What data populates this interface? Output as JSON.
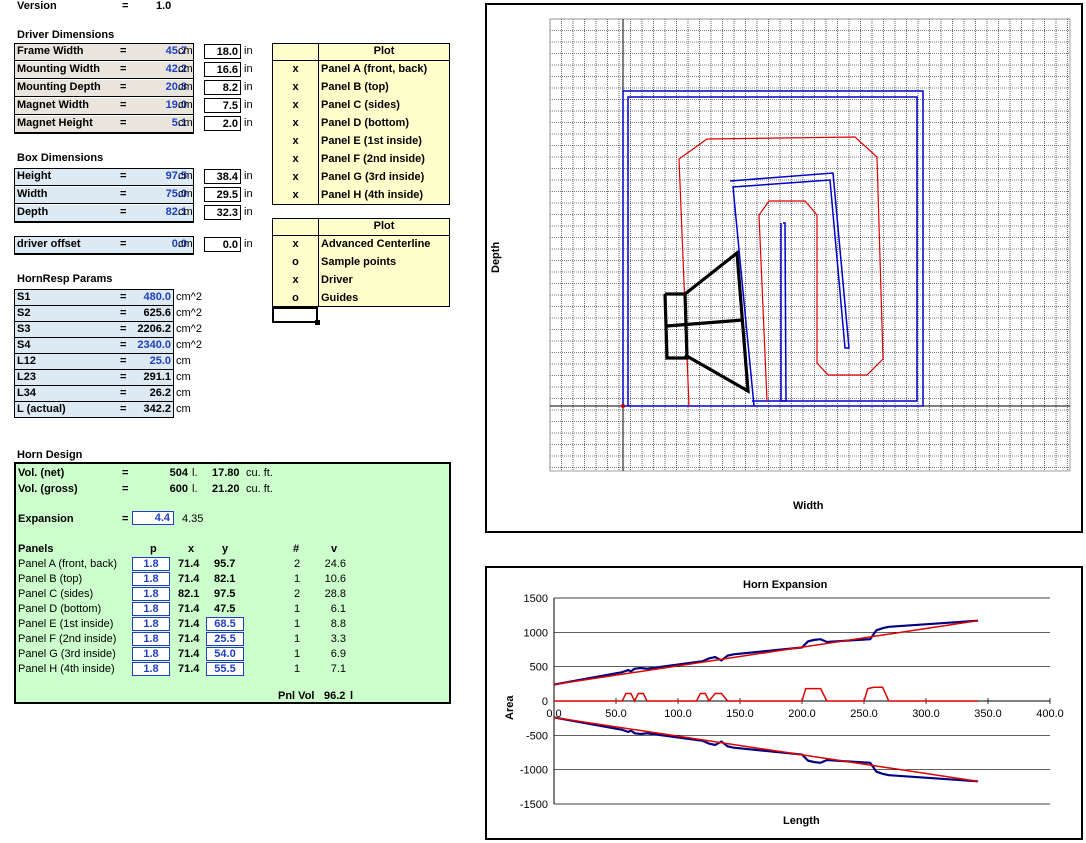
{
  "version": {
    "label": "Version",
    "eq": "=",
    "value": "1.0"
  },
  "driver": {
    "title": "Driver Dimensions",
    "rows": [
      {
        "label": "Frame Width",
        "eq": "=",
        "cm": "45.7",
        "unit": "cm",
        "in": "18.0",
        "iu": "in"
      },
      {
        "label": "Mounting Width",
        "eq": "=",
        "cm": "42.2",
        "unit": "cm",
        "in": "16.6",
        "iu": "in"
      },
      {
        "label": "Mounting Depth",
        "eq": "=",
        "cm": "20.8",
        "unit": "cm",
        "in": "8.2",
        "iu": "in"
      },
      {
        "label": "Magnet Width",
        "eq": "=",
        "cm": "19.0",
        "unit": "cm",
        "in": "7.5",
        "iu": "in"
      },
      {
        "label": "Magnet Height",
        "eq": "=",
        "cm": "5.1",
        "unit": "cm",
        "in": "2.0",
        "iu": "in"
      }
    ]
  },
  "box": {
    "title": "Box Dimensions",
    "rows": [
      {
        "label": "Height",
        "eq": "=",
        "cm": "97.5",
        "unit": "cm",
        "in": "38.4",
        "iu": "in"
      },
      {
        "label": "Width",
        "eq": "=",
        "cm": "75.0",
        "unit": "cm",
        "in": "29.5",
        "iu": "in"
      },
      {
        "label": "Depth",
        "eq": "=",
        "cm": "82.1",
        "unit": "cm",
        "in": "32.3",
        "iu": "in"
      }
    ]
  },
  "offset": {
    "label": "driver offset",
    "eq": "=",
    "cm": "0.0",
    "unit": "cm",
    "in": "0.0",
    "iu": "in"
  },
  "hornresp": {
    "title": "HornResp Params",
    "rows": [
      {
        "label": "S1",
        "eq": "=",
        "val": "480.0",
        "unit": "cm^2",
        "blue": true
      },
      {
        "label": "S2",
        "eq": "=",
        "val": "625.6",
        "unit": "cm^2",
        "blue": false
      },
      {
        "label": "S3",
        "eq": "=",
        "val": "2206.2",
        "unit": "cm^2",
        "blue": false
      },
      {
        "label": "S4",
        "eq": "=",
        "val": "2340.0",
        "unit": "cm^2",
        "blue": true
      },
      {
        "label": "L12",
        "eq": "=",
        "val": "25.0",
        "unit": "cm",
        "blue": true
      },
      {
        "label": "L23",
        "eq": "=",
        "val": "291.1",
        "unit": "cm",
        "blue": false
      },
      {
        "label": "L34",
        "eq": "=",
        "val": "26.2",
        "unit": "cm",
        "blue": false
      },
      {
        "label": "L (actual)",
        "eq": "=",
        "val": "342.2",
        "unit": "cm",
        "blue": false
      }
    ]
  },
  "plot1": {
    "header": "Plot",
    "rows": [
      {
        "mark": "x",
        "label": "Panel A (front, back)"
      },
      {
        "mark": "x",
        "label": "Panel B (top)"
      },
      {
        "mark": "x",
        "label": "Panel C (sides)"
      },
      {
        "mark": "x",
        "label": "Panel D (bottom)"
      },
      {
        "mark": "x",
        "label": "Panel E (1st inside)"
      },
      {
        "mark": "x",
        "label": "Panel F (2nd inside)"
      },
      {
        "mark": "x",
        "label": "Panel G (3rd inside)"
      },
      {
        "mark": "x",
        "label": "Panel H (4th inside)"
      }
    ]
  },
  "plot2": {
    "header": "Plot",
    "rows": [
      {
        "mark": "x",
        "label": "Advanced Centerline"
      },
      {
        "mark": "o",
        "label": "Sample points"
      },
      {
        "mark": "x",
        "label": "Driver"
      },
      {
        "mark": "o",
        "label": "Guides"
      }
    ]
  },
  "horn": {
    "title": "Horn Design",
    "volnet": {
      "label": "Vol. (net)",
      "eq": "=",
      "val": "504",
      "u1": "l.",
      "cuft": "17.80",
      "u2": "cu. ft."
    },
    "volgross": {
      "label": "Vol. (gross)",
      "eq": "=",
      "val": "600",
      "u1": "l.",
      "cuft": "21.20",
      "u2": "cu. ft."
    },
    "expansion": {
      "label": "Expansion",
      "eq": "=",
      "val": "4.4",
      "alt": "4.35"
    },
    "headers": {
      "panels": "Panels",
      "p": "p",
      "x": "x",
      "y": "y",
      "n": "#",
      "v": "v"
    },
    "panels": [
      {
        "name": "Panel A (front, back)",
        "p": "1.8",
        "x": "71.4",
        "y": "95.7",
        "ybox": false,
        "n": "2",
        "v": "24.6"
      },
      {
        "name": "Panel B (top)",
        "p": "1.8",
        "x": "71.4",
        "y": "82.1",
        "ybox": false,
        "n": "1",
        "v": "10.6"
      },
      {
        "name": "Panel C (sides)",
        "p": "1.8",
        "x": "82.1",
        "y": "97.5",
        "ybox": false,
        "n": "2",
        "v": "28.8"
      },
      {
        "name": "Panel D (bottom)",
        "p": "1.8",
        "x": "71.4",
        "y": "47.5",
        "ybox": false,
        "n": "1",
        "v": "6.1"
      },
      {
        "name": "Panel E (1st inside)",
        "p": "1.8",
        "x": "71.4",
        "y": "68.5",
        "ybox": true,
        "n": "1",
        "v": "8.8"
      },
      {
        "name": "Panel F (2nd inside)",
        "p": "1.8",
        "x": "71.4",
        "y": "25.5",
        "ybox": true,
        "n": "1",
        "v": "3.3"
      },
      {
        "name": "Panel G (3rd inside)",
        "p": "1.8",
        "x": "71.4",
        "y": "54.0",
        "ybox": true,
        "n": "1",
        "v": "6.9"
      },
      {
        "name": "Panel H (4th inside)",
        "p": "1.8",
        "x": "71.4",
        "y": "55.5",
        "ybox": true,
        "n": "1",
        "v": "7.1"
      }
    ],
    "pnlvol": {
      "label": "Pnl Vol",
      "val": "96.2",
      "unit": "l"
    }
  },
  "chart_data": [
    {
      "type": "line",
      "title": "",
      "xlabel": "Width",
      "ylabel": "Depth",
      "grid": true,
      "series_colors": {
        "outer_box": "#0000cc",
        "centerline": "#e00000",
        "driver": "#000000"
      }
    },
    {
      "type": "line",
      "title": "Horn Expansion",
      "xlabel": "Length",
      "ylabel": "Area",
      "xlim": [
        0,
        400
      ],
      "ylim": [
        -1500,
        1500
      ],
      "xticks": [
        "0.0",
        "50.0",
        "100.0",
        "150.0",
        "200.0",
        "250.0",
        "300.0",
        "350.0",
        "400.0"
      ],
      "yticks": [
        "1500",
        "1000",
        "500",
        "0",
        "-500",
        "-1000",
        "-1500"
      ],
      "grid": true,
      "series": [
        {
          "color": "#000080",
          "x": [
            0,
            55,
            60,
            62,
            65,
            70,
            75,
            120,
            125,
            130,
            135,
            140,
            145,
            200,
            205,
            210,
            215,
            220,
            255,
            260,
            265,
            270,
            342
          ],
          "y": [
            240,
            420,
            450,
            430,
            470,
            480,
            470,
            580,
            620,
            640,
            590,
            660,
            680,
            780,
            870,
            890,
            900,
            860,
            900,
            1030,
            1060,
            1080,
            1170
          ]
        },
        {
          "color": "#e00000",
          "x": [
            0,
            342
          ],
          "y": [
            240,
            1170
          ]
        },
        {
          "color": "#e00000",
          "x": [
            0,
            55,
            58,
            62,
            65,
            68,
            72,
            75,
            78,
            115,
            118,
            122,
            125,
            130,
            135,
            140,
            145,
            200,
            203,
            210,
            215,
            220,
            250,
            253,
            258,
            265,
            270,
            342
          ],
          "y": [
            0,
            0,
            110,
            110,
            0,
            110,
            110,
            0,
            0,
            0,
            110,
            110,
            0,
            110,
            110,
            0,
            0,
            0,
            180,
            180,
            180,
            0,
            0,
            180,
            200,
            200,
            0,
            0
          ]
        },
        {
          "color": "#000080",
          "x": [
            0,
            55,
            60,
            62,
            65,
            70,
            75,
            120,
            125,
            130,
            135,
            140,
            145,
            200,
            205,
            210,
            215,
            220,
            255,
            260,
            265,
            270,
            342
          ],
          "y": [
            -240,
            -420,
            -450,
            -430,
            -470,
            -480,
            -470,
            -580,
            -620,
            -640,
            -590,
            -660,
            -680,
            -780,
            -870,
            -890,
            -900,
            -860,
            -900,
            -1030,
            -1060,
            -1080,
            -1170
          ]
        },
        {
          "color": "#e00000",
          "x": [
            0,
            342
          ],
          "y": [
            -240,
            -1170
          ]
        }
      ]
    }
  ]
}
